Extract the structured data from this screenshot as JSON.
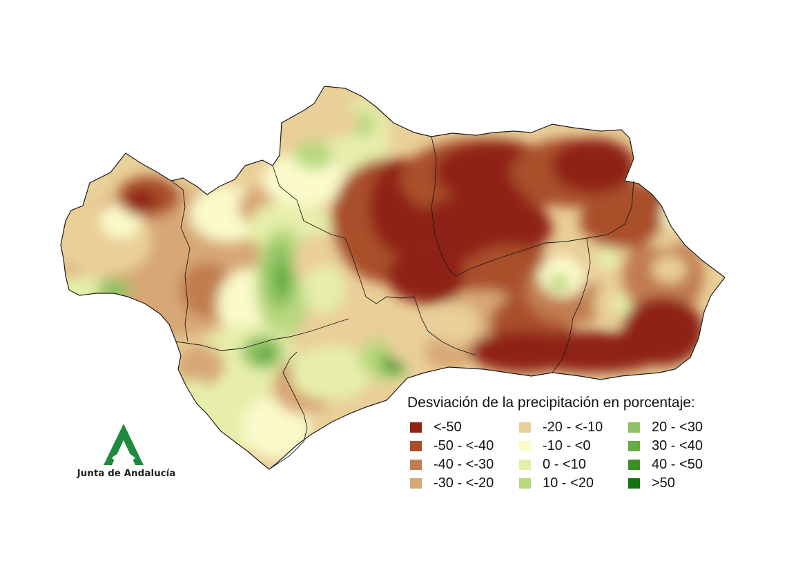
{
  "legend": {
    "title": "Desviación de la precipitación en porcentaje:",
    "classes": [
      {
        "label": "<-50",
        "color": "#8f2315"
      },
      {
        "label": "-50 - <-40",
        "color": "#a94f2b"
      },
      {
        "label": "-40 - <-30",
        "color": "#c17d50"
      },
      {
        "label": "-30 - <-20",
        "color": "#d7a774"
      },
      {
        "label": "-20 - <-10",
        "color": "#e9cf98"
      },
      {
        "label": "-10 - <0",
        "color": "#fafaca"
      },
      {
        "label": "0 - <10",
        "color": "#e6eeaa"
      },
      {
        "label": "10 - <20",
        "color": "#b8d87e"
      },
      {
        "label": "20 - <30",
        "color": "#8fc264"
      },
      {
        "label": "30 - <40",
        "color": "#66ad44"
      },
      {
        "label": "40 - <50",
        "color": "#3b8f26"
      },
      {
        "label": ">50",
        "color": "#127312"
      }
    ]
  },
  "logo": {
    "text": "Junta de Andalucía",
    "color": "#1e8a3f"
  }
}
